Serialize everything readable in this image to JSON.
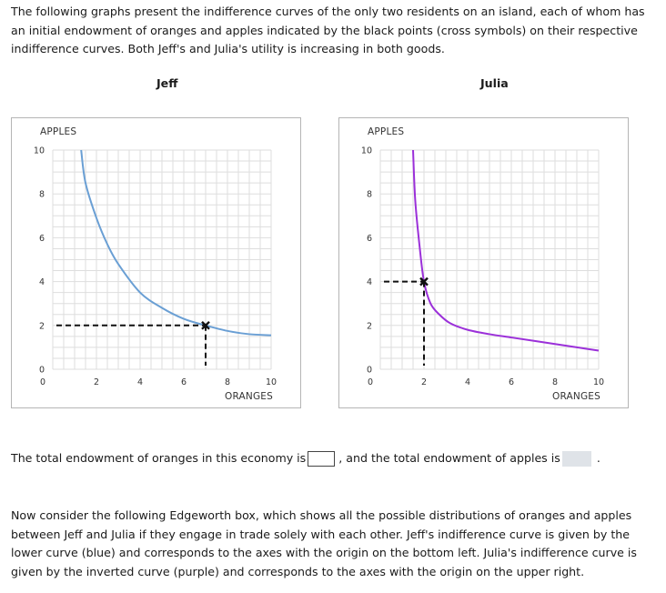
{
  "intro_text": "The following graphs present the indifference curves of the only two residents on an island, each of whom has an initial endowment of oranges and apples indicated by the black points (cross symbols) on their respective indifference curves. Both Jeff's and Julia's utility is increasing in both goods.",
  "question": {
    "prefix": "The total endowment of oranges in this economy is",
    "middle": ", and the total endowment of apples is",
    "suffix": ".",
    "oranges_answer": "",
    "apples_answer": ""
  },
  "outro_text": "Now consider the following Edgeworth box, which shows all the possible distributions of oranges and apples between Jeff and Julia if they engage in trade solely with each other. Jeff's indifference curve is given by the lower curve (blue) and corresponds to the axes with the origin on the bottom left. Julia's indifference curve is given by the inverted curve (purple) and corresponds to the axes with the origin on the upper right.",
  "chart_data": [
    {
      "type": "line",
      "title": "Jeff",
      "xlabel": "ORANGES",
      "ylabel": "APPLES",
      "xlim": [
        0,
        10
      ],
      "ylim": [
        0,
        10
      ],
      "x_ticks": [
        "0",
        "2",
        "4",
        "6",
        "8",
        "10"
      ],
      "y_ticks": [
        "0",
        "2",
        "4",
        "6",
        "8",
        "10"
      ],
      "grid": true,
      "series": [
        {
          "color": "#6a9fd4",
          "x": [
            1.3,
            1.5,
            2,
            2.5,
            3,
            4,
            5,
            6,
            7,
            8,
            9,
            10
          ],
          "y": [
            10,
            8.5,
            6.9,
            5.7,
            4.8,
            3.5,
            2.8,
            2.3,
            2.0,
            1.75,
            1.6,
            1.55
          ]
        }
      ],
      "endowment": {
        "x": 7,
        "y": 2
      }
    },
    {
      "type": "line",
      "title": "Julia",
      "xlabel": "ORANGES",
      "ylabel": "APPLES",
      "xlim": [
        0,
        10
      ],
      "ylim": [
        0,
        10
      ],
      "x_ticks": [
        "0",
        "2",
        "4",
        "6",
        "8",
        "10"
      ],
      "y_ticks": [
        "0",
        "2",
        "4",
        "6",
        "8",
        "10"
      ],
      "grid": true,
      "series": [
        {
          "color": "#9b30d9",
          "x": [
            1.5,
            1.6,
            1.8,
            2,
            2.3,
            2.7,
            3.2,
            4,
            5,
            6,
            7,
            8,
            9,
            10
          ],
          "y": [
            10,
            7.7,
            5.6,
            4,
            3,
            2.5,
            2.1,
            1.8,
            1.6,
            1.45,
            1.3,
            1.15,
            1.0,
            0.85
          ]
        }
      ],
      "endowment": {
        "x": 2,
        "y": 4
      }
    }
  ]
}
